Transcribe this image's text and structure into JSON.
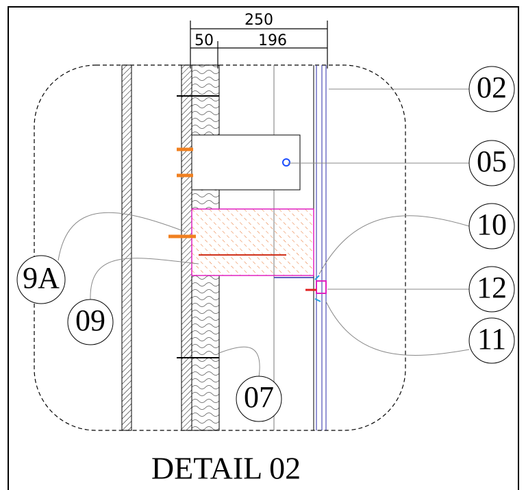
{
  "title": "DETAIL 02",
  "dimensions": [
    {
      "label": "250"
    },
    {
      "label": "50"
    },
    {
      "label": "196"
    }
  ],
  "callouts": [
    {
      "label": "02"
    },
    {
      "label": "05"
    },
    {
      "label": "10"
    },
    {
      "label": "12"
    },
    {
      "label": "11"
    },
    {
      "label": "9A"
    },
    {
      "label": "09"
    },
    {
      "label": "07"
    }
  ]
}
